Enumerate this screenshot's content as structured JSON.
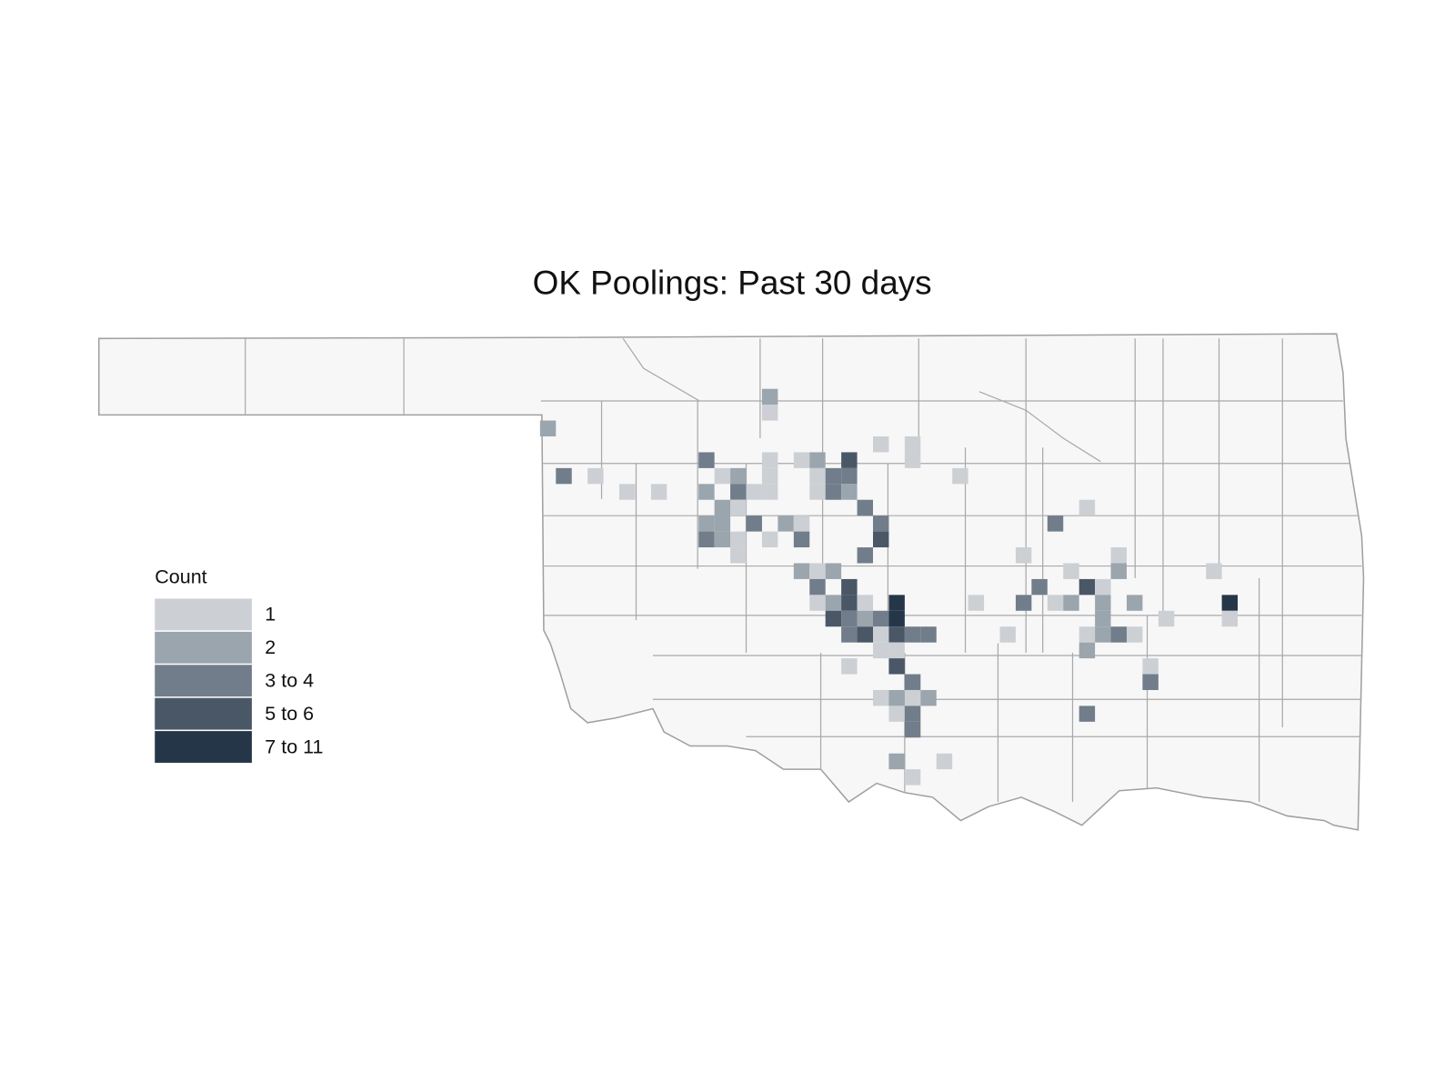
{
  "title": "OK Poolings: Past 30 days",
  "legend": {
    "title": "Count",
    "items": [
      {
        "label": "1",
        "color": "#ccd0d5"
      },
      {
        "label": "2",
        "color": "#9ba5ae"
      },
      {
        "label": "3 to 4",
        "color": "#717d8a"
      },
      {
        "label": "5 to 6",
        "color": "#4a5767"
      },
      {
        "label": "7 to 11",
        "color": "#263649"
      }
    ]
  },
  "cells": [
    [
      14,
      0,
      1
    ],
    [
      14,
      1,
      0
    ],
    [
      0,
      2,
      1
    ],
    [
      21,
      3,
      0
    ],
    [
      23,
      3,
      0
    ],
    [
      10,
      4,
      2
    ],
    [
      14,
      4,
      0
    ],
    [
      16,
      4,
      0
    ],
    [
      17,
      4,
      1
    ],
    [
      19,
      4,
      3
    ],
    [
      23,
      4,
      0
    ],
    [
      1,
      5,
      2
    ],
    [
      3,
      5,
      0
    ],
    [
      11,
      5,
      0
    ],
    [
      12,
      5,
      1
    ],
    [
      14,
      5,
      0
    ],
    [
      17,
      5,
      0
    ],
    [
      18,
      5,
      2
    ],
    [
      19,
      5,
      2
    ],
    [
      26,
      5,
      0
    ],
    [
      5,
      6,
      0
    ],
    [
      7,
      6,
      0
    ],
    [
      10,
      6,
      1
    ],
    [
      12,
      6,
      2
    ],
    [
      13,
      6,
      0
    ],
    [
      14,
      6,
      0
    ],
    [
      17,
      6,
      0
    ],
    [
      18,
      6,
      2
    ],
    [
      19,
      6,
      1
    ],
    [
      11,
      7,
      1
    ],
    [
      12,
      7,
      0
    ],
    [
      20,
      7,
      2
    ],
    [
      34,
      7,
      0
    ],
    [
      10,
      8,
      1
    ],
    [
      11,
      8,
      1
    ],
    [
      13,
      8,
      2
    ],
    [
      15,
      8,
      1
    ],
    [
      16,
      8,
      0
    ],
    [
      21,
      8,
      2
    ],
    [
      32,
      8,
      2
    ],
    [
      10,
      9,
      2
    ],
    [
      11,
      9,
      1
    ],
    [
      12,
      9,
      0
    ],
    [
      14,
      9,
      0
    ],
    [
      16,
      9,
      2
    ],
    [
      21,
      9,
      3
    ],
    [
      12,
      10,
      0
    ],
    [
      20,
      10,
      2
    ],
    [
      30,
      10,
      0
    ],
    [
      36,
      10,
      0
    ],
    [
      16,
      11,
      1
    ],
    [
      17,
      11,
      0
    ],
    [
      18,
      11,
      1
    ],
    [
      33,
      11,
      0
    ],
    [
      36,
      11,
      1
    ],
    [
      42,
      11,
      0
    ],
    [
      17,
      12,
      2
    ],
    [
      19,
      12,
      3
    ],
    [
      31,
      12,
      2
    ],
    [
      34,
      12,
      3
    ],
    [
      35,
      12,
      0
    ],
    [
      17,
      13,
      0
    ],
    [
      18,
      13,
      1
    ],
    [
      19,
      13,
      3
    ],
    [
      20,
      13,
      0
    ],
    [
      22,
      13,
      4
    ],
    [
      27,
      13,
      0
    ],
    [
      30,
      13,
      2
    ],
    [
      32,
      13,
      0
    ],
    [
      33,
      13,
      1
    ],
    [
      35,
      13,
      1
    ],
    [
      37,
      13,
      1
    ],
    [
      43,
      13,
      4
    ],
    [
      18,
      14,
      3
    ],
    [
      19,
      14,
      2
    ],
    [
      20,
      14,
      1
    ],
    [
      21,
      14,
      2
    ],
    [
      22,
      14,
      4
    ],
    [
      35,
      14,
      1
    ],
    [
      39,
      14,
      0
    ],
    [
      43,
      14,
      0
    ],
    [
      19,
      15,
      2
    ],
    [
      20,
      15,
      3
    ],
    [
      21,
      15,
      0
    ],
    [
      22,
      15,
      3
    ],
    [
      23,
      15,
      2
    ],
    [
      24,
      15,
      2
    ],
    [
      29,
      15,
      0
    ],
    [
      34,
      15,
      0
    ],
    [
      35,
      15,
      1
    ],
    [
      36,
      15,
      2
    ],
    [
      37,
      15,
      0
    ],
    [
      21,
      16,
      0
    ],
    [
      22,
      16,
      0
    ],
    [
      34,
      16,
      1
    ],
    [
      19,
      17,
      0
    ],
    [
      22,
      17,
      3
    ],
    [
      38,
      17,
      0
    ],
    [
      23,
      18,
      2
    ],
    [
      38,
      18,
      2
    ],
    [
      21,
      19,
      0
    ],
    [
      22,
      19,
      1
    ],
    [
      23,
      19,
      0
    ],
    [
      24,
      19,
      1
    ],
    [
      22,
      20,
      0
    ],
    [
      23,
      20,
      2
    ],
    [
      34,
      20,
      2
    ],
    [
      23,
      21,
      2
    ],
    [
      22,
      23,
      1
    ],
    [
      25,
      23,
      0
    ],
    [
      23,
      24,
      0
    ]
  ]
}
